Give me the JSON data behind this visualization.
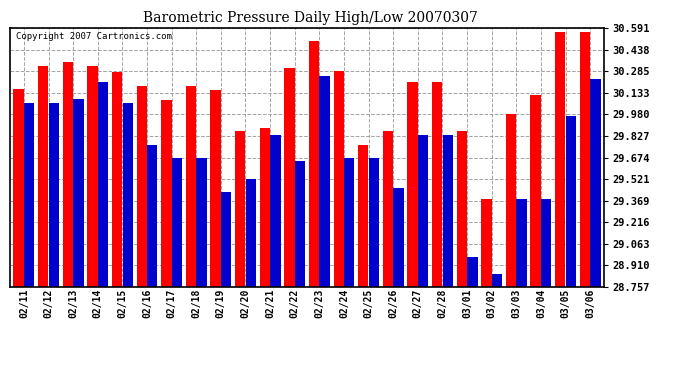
{
  "title": "Barometric Pressure Daily High/Low 20070307",
  "copyright": "Copyright 2007 Cartronics.com",
  "dates": [
    "02/11",
    "02/12",
    "02/13",
    "02/14",
    "02/15",
    "02/16",
    "02/17",
    "02/18",
    "02/19",
    "02/20",
    "02/21",
    "02/22",
    "02/23",
    "02/24",
    "02/25",
    "02/26",
    "02/27",
    "02/28",
    "03/01",
    "03/02",
    "03/03",
    "03/04",
    "03/05",
    "03/06"
  ],
  "highs": [
    30.16,
    30.32,
    30.35,
    30.32,
    30.28,
    30.18,
    30.08,
    30.18,
    30.15,
    29.86,
    29.88,
    30.31,
    30.5,
    30.29,
    29.76,
    29.86,
    30.21,
    30.21,
    29.86,
    29.38,
    29.98,
    30.12,
    30.56,
    30.56
  ],
  "lows": [
    30.06,
    30.06,
    30.09,
    30.21,
    30.06,
    29.76,
    29.67,
    29.67,
    29.43,
    29.52,
    29.83,
    29.65,
    30.25,
    29.67,
    29.67,
    29.46,
    29.83,
    29.83,
    28.97,
    28.85,
    29.38,
    29.38,
    29.97,
    30.23
  ],
  "high_color": "#ff0000",
  "low_color": "#0000cc",
  "bg_color": "#ffffff",
  "grid_color": "#999999",
  "yticks": [
    28.757,
    28.91,
    29.063,
    29.216,
    29.369,
    29.521,
    29.674,
    29.827,
    29.98,
    30.133,
    30.285,
    30.438,
    30.591
  ],
  "ymin": 28.757,
  "ymax": 30.591,
  "bar_width": 0.42,
  "bar_gap": 0.01
}
